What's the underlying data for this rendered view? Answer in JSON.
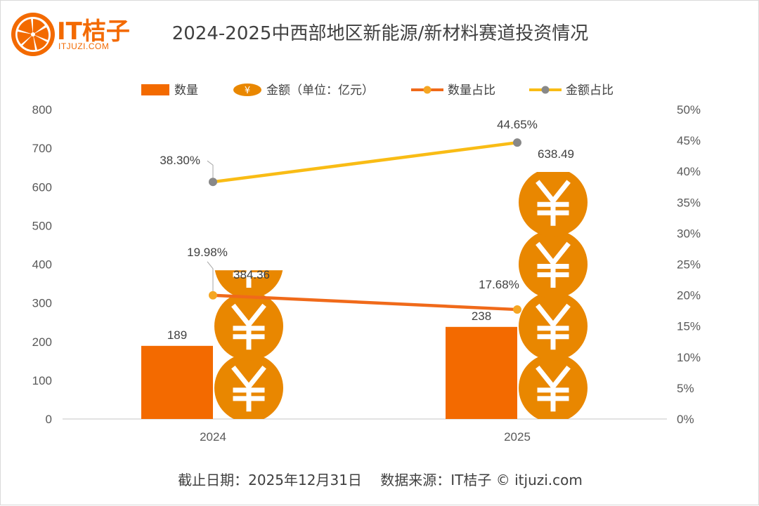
{
  "brand": {
    "name": "IT桔子",
    "url": "ITJUZI.COM"
  },
  "title": "2024-2025中西部地区新能源/新材料赛道投资情况",
  "footer": {
    "date_note": "截止日期：2025年12月31日",
    "source_note": "数据来源：IT桔子 © itjuzi.com"
  },
  "colors": {
    "bar": "#f36a00",
    "coin": "#e98700",
    "coin_symbol": "#ffffff",
    "count_share_line": "#f06a1a",
    "count_share_marker": "#f5a623",
    "amount_share_line": "#f9bc15",
    "amount_share_marker": "#888888",
    "axis": "#d9d9d9",
    "brand": "#f36a00"
  },
  "chart_data": {
    "type": "bar",
    "categories": [
      "2024",
      "2025"
    ],
    "series": [
      {
        "name": "数量",
        "type": "bar",
        "axis": "left",
        "values": [
          189,
          238
        ],
        "labels": [
          "189",
          "238"
        ]
      },
      {
        "name": "金额（单位：亿元）",
        "type": "pictograph",
        "axis": "left",
        "icon": "yuan-coin-icon",
        "values": [
          384.36,
          638.49
        ],
        "labels": [
          "384.36",
          "638.49"
        ]
      },
      {
        "name": "数量占比",
        "type": "line",
        "axis": "right",
        "values": [
          19.98,
          17.68
        ],
        "labels": [
          "19.98%",
          "17.68%"
        ]
      },
      {
        "name": "金额占比",
        "type": "line",
        "axis": "right",
        "values": [
          38.3,
          44.65
        ],
        "labels": [
          "38.30%",
          "44.65%"
        ]
      }
    ],
    "y_left": {
      "min": 0,
      "max": 800,
      "ticks": [
        "0",
        "100",
        "200",
        "300",
        "400",
        "500",
        "600",
        "700",
        "800"
      ]
    },
    "y_right": {
      "min": 0,
      "max": 50,
      "ticks": [
        "0%",
        "5%",
        "10%",
        "15%",
        "20%",
        "25%",
        "30%",
        "35%",
        "40%",
        "45%",
        "50%"
      ]
    },
    "legend_position": "top",
    "grid": false,
    "coin_unit": 160
  }
}
